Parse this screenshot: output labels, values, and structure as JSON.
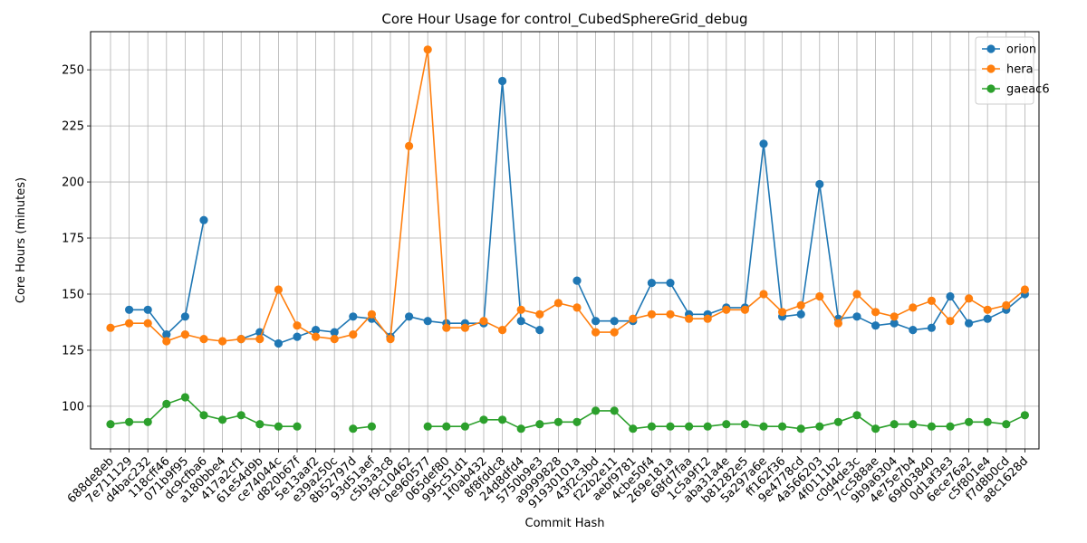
{
  "chart_data": {
    "type": "line",
    "title": "Core Hour Usage for control_CubedSphereGrid_debug",
    "xlabel": "Commit Hash",
    "ylabel": "Core Hours (minutes)",
    "ylim": [
      81,
      267
    ],
    "yticks": [
      100,
      125,
      150,
      175,
      200,
      225,
      250
    ],
    "grid": true,
    "legend_position": "top-right",
    "categories": [
      "688de8eb",
      "7e711129",
      "d4bac232",
      "118cff46",
      "071b9f95",
      "dc9cfba6",
      "a180bbe4",
      "417a2cf1",
      "61e54d9b",
      "ce74044c",
      "d820b67f",
      "5e13aaf2",
      "e39a250c",
      "8b52797d",
      "93d51aef",
      "c5b3a3c8",
      "f9c10462",
      "0e960577",
      "065def80",
      "995c51d1",
      "1f0ab432",
      "8f8fddc8",
      "24d8dfd4",
      "5750b9e3",
      "a9999828",
      "91930101a",
      "43f2c3bd",
      "f22b2e11",
      "aebf9781",
      "4cbe50f4",
      "269e181a",
      "68fd7faa",
      "1c5a9f12",
      "aba31a4e",
      "b81282e5",
      "5a297a6e",
      "ff162f36",
      "9e4778cd",
      "4a566203",
      "4f0111b2",
      "c0d4de3c",
      "7cc588ae",
      "9b9a6304",
      "4e75e7b4",
      "69d03840",
      "0d1af3e3",
      "6ece76a2",
      "c5f801e4",
      "f7d8b0cd",
      "a8c1628d"
    ],
    "series": [
      {
        "name": "orion",
        "color": "#1f77b4",
        "values": [
          null,
          143,
          143,
          132,
          140,
          183,
          null,
          130,
          133,
          128,
          131,
          134,
          133,
          140,
          139,
          131,
          140,
          138,
          137,
          137,
          137,
          245,
          138,
          134,
          null,
          156,
          138,
          138,
          138,
          155,
          155,
          141,
          141,
          144,
          144,
          217,
          140,
          141,
          199,
          139,
          140,
          136,
          137,
          134,
          135,
          149,
          137,
          139,
          143,
          150
        ]
      },
      {
        "name": "hera",
        "color": "#ff7f0e",
        "values": [
          135,
          137,
          137,
          129,
          132,
          130,
          129,
          130,
          130,
          152,
          136,
          131,
          130,
          132,
          141,
          130,
          216,
          259,
          135,
          135,
          138,
          134,
          143,
          141,
          146,
          144,
          133,
          133,
          139,
          141,
          141,
          139,
          139,
          143,
          143,
          150,
          142,
          145,
          149,
          137,
          150,
          142,
          140,
          144,
          147,
          138,
          148,
          143,
          145,
          152
        ]
      },
      {
        "name": "gaeac6",
        "color": "#2ca02c",
        "values": [
          92,
          93,
          93,
          101,
          104,
          96,
          94,
          96,
          92,
          91,
          91,
          null,
          null,
          90,
          91,
          null,
          null,
          91,
          91,
          91,
          94,
          94,
          90,
          92,
          93,
          93,
          98,
          98,
          90,
          91,
          91,
          91,
          91,
          92,
          92,
          91,
          91,
          90,
          91,
          93,
          96,
          90,
          92,
          92,
          91,
          91,
          93,
          93,
          92,
          96
        ]
      }
    ]
  }
}
